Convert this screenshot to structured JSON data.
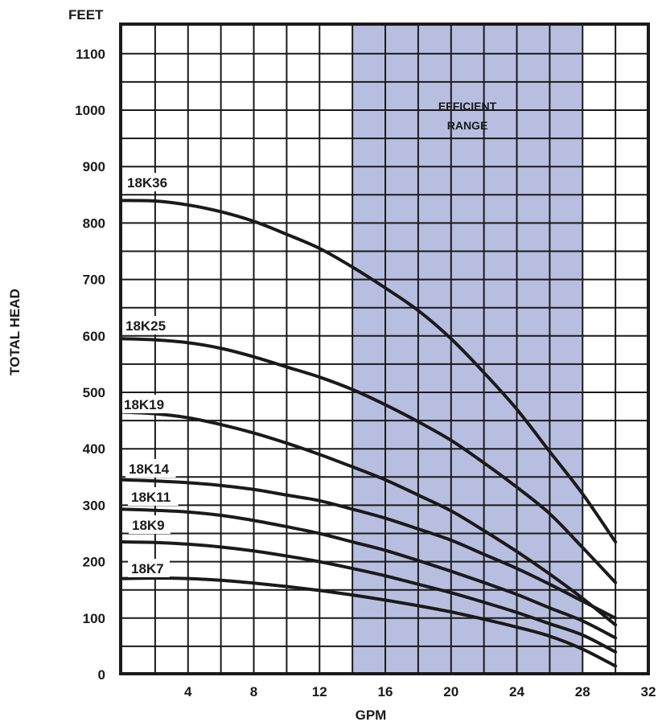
{
  "chart_data": {
    "type": "line",
    "title": "",
    "xlabel": "GPM",
    "ylabel": "TOTAL HEAD",
    "y_unit_label": "FEET",
    "xlim": [
      0,
      32
    ],
    "ylim": [
      -15,
      1160
    ],
    "x_ticks": [
      4,
      8,
      12,
      16,
      20,
      24,
      28,
      32
    ],
    "y_ticks": [
      0,
      100,
      200,
      300,
      400,
      500,
      600,
      700,
      800,
      900,
      1000,
      1100
    ],
    "x_grid_step": 2,
    "y_grid_step": 50,
    "grid": true,
    "highlight_region": {
      "x_start": 14,
      "x_end": 28,
      "label_line1": "EFFICIENT",
      "label_line2": "RANGE",
      "color": "#b7bedf"
    },
    "line_color": "#1a1a1a",
    "series": [
      {
        "name": "18K36",
        "x": [
          0,
          2,
          4,
          6,
          8,
          10,
          12,
          14,
          16,
          18,
          20,
          22,
          24,
          26,
          28,
          30
        ],
        "y": [
          840,
          839,
          832,
          820,
          803,
          780,
          755,
          722,
          685,
          645,
          595,
          535,
          470,
          395,
          320,
          235
        ]
      },
      {
        "name": "18K25",
        "x": [
          0,
          2,
          4,
          6,
          8,
          10,
          12,
          14,
          16,
          18,
          20,
          22,
          24,
          26,
          28,
          30
        ],
        "y": [
          595,
          593,
          588,
          578,
          563,
          545,
          527,
          505,
          478,
          448,
          415,
          375,
          332,
          285,
          225,
          163
        ]
      },
      {
        "name": "18K19",
        "x": [
          0,
          2,
          4,
          6,
          8,
          10,
          12,
          14,
          16,
          18,
          20,
          22,
          24,
          26,
          28,
          30
        ],
        "y": [
          465,
          462,
          455,
          443,
          428,
          410,
          390,
          368,
          345,
          318,
          290,
          255,
          218,
          178,
          135,
          88
        ]
      },
      {
        "name": "18K14",
        "x": [
          0,
          2,
          4,
          6,
          8,
          10,
          12,
          14,
          16,
          18,
          20,
          22,
          24,
          26,
          28,
          30
        ],
        "y": [
          345,
          343,
          340,
          335,
          328,
          318,
          308,
          293,
          277,
          258,
          238,
          213,
          188,
          160,
          130,
          100
        ]
      },
      {
        "name": "18K11",
        "x": [
          0,
          2,
          4,
          6,
          8,
          10,
          12,
          14,
          16,
          18,
          20,
          22,
          24,
          26,
          28,
          30
        ],
        "y": [
          293,
          291,
          288,
          282,
          273,
          262,
          250,
          235,
          220,
          202,
          183,
          163,
          142,
          118,
          95,
          65
        ]
      },
      {
        "name": "18K9",
        "x": [
          0,
          2,
          4,
          6,
          8,
          10,
          12,
          14,
          16,
          18,
          20,
          22,
          24,
          26,
          28,
          30
        ],
        "y": [
          235,
          234,
          231,
          226,
          219,
          210,
          200,
          188,
          175,
          160,
          145,
          128,
          110,
          90,
          70,
          40
        ]
      },
      {
        "name": "18K7",
        "x": [
          0,
          2,
          4,
          6,
          8,
          10,
          12,
          14,
          16,
          18,
          20,
          22,
          24,
          26,
          28,
          30
        ],
        "y": [
          170,
          171,
          170,
          167,
          162,
          156,
          149,
          141,
          132,
          122,
          111,
          98,
          84,
          68,
          45,
          15
        ]
      }
    ]
  }
}
